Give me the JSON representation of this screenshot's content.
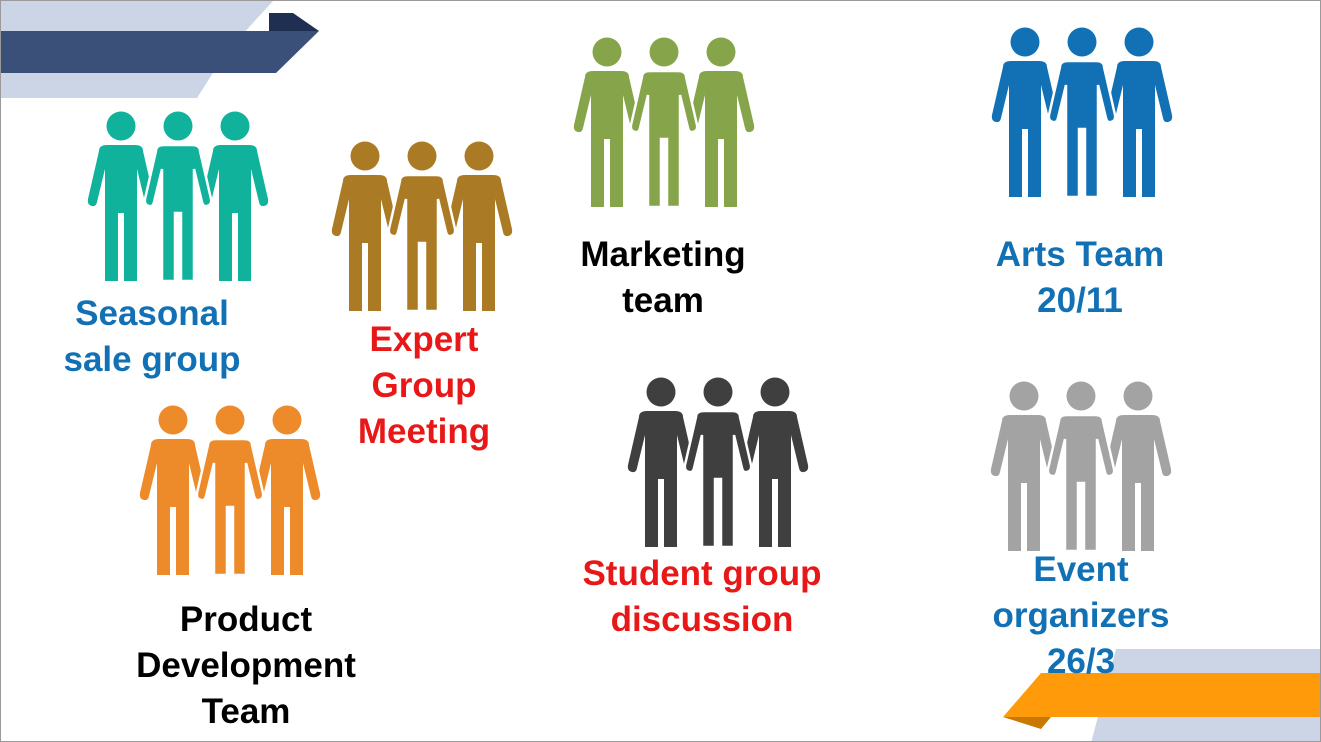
{
  "colors": {
    "teal": "#10B29C",
    "brown": "#AB7A24",
    "green": "#86A54B",
    "blue": "#1271B5",
    "orange": "#ED8B2B",
    "dark": "#3F3F3F",
    "gray": "#A3A3A3",
    "label_blue": "#1271B5",
    "label_red": "#E81818",
    "label_black": "#000000",
    "corner_navy": "#3A5078",
    "corner_light": "#CBD5E6",
    "corner_orange": "#FF9A0A"
  },
  "groups": [
    {
      "id": "seasonal",
      "icon": "people-group-icon",
      "color": "#10B29C",
      "label": "Seasonal\nsale group",
      "label_color": "#1271B5"
    },
    {
      "id": "expert",
      "icon": "people-group-icon",
      "color": "#AB7A24",
      "label": "Expert\nGroup\nMeeting",
      "label_color": "#E81818"
    },
    {
      "id": "marketing",
      "icon": "people-group-icon",
      "color": "#86A54B",
      "label": "Marketing\nteam",
      "label_color": "#000000"
    },
    {
      "id": "arts",
      "icon": "people-group-icon",
      "color": "#1271B5",
      "label": "Arts Team\n20/11",
      "label_color": "#1271B5"
    },
    {
      "id": "product",
      "icon": "people-group-icon",
      "color": "#ED8B2B",
      "label": "Product\nDevelopment\nTeam",
      "label_color": "#000000"
    },
    {
      "id": "student",
      "icon": "people-group-icon",
      "color": "#3F3F3F",
      "label": "Student group\ndiscussion",
      "label_color": "#E81818"
    },
    {
      "id": "event",
      "icon": "people-group-icon",
      "color": "#A3A3A3",
      "label": "Event\norganizers\n26/3",
      "label_color": "#1271B5"
    }
  ]
}
